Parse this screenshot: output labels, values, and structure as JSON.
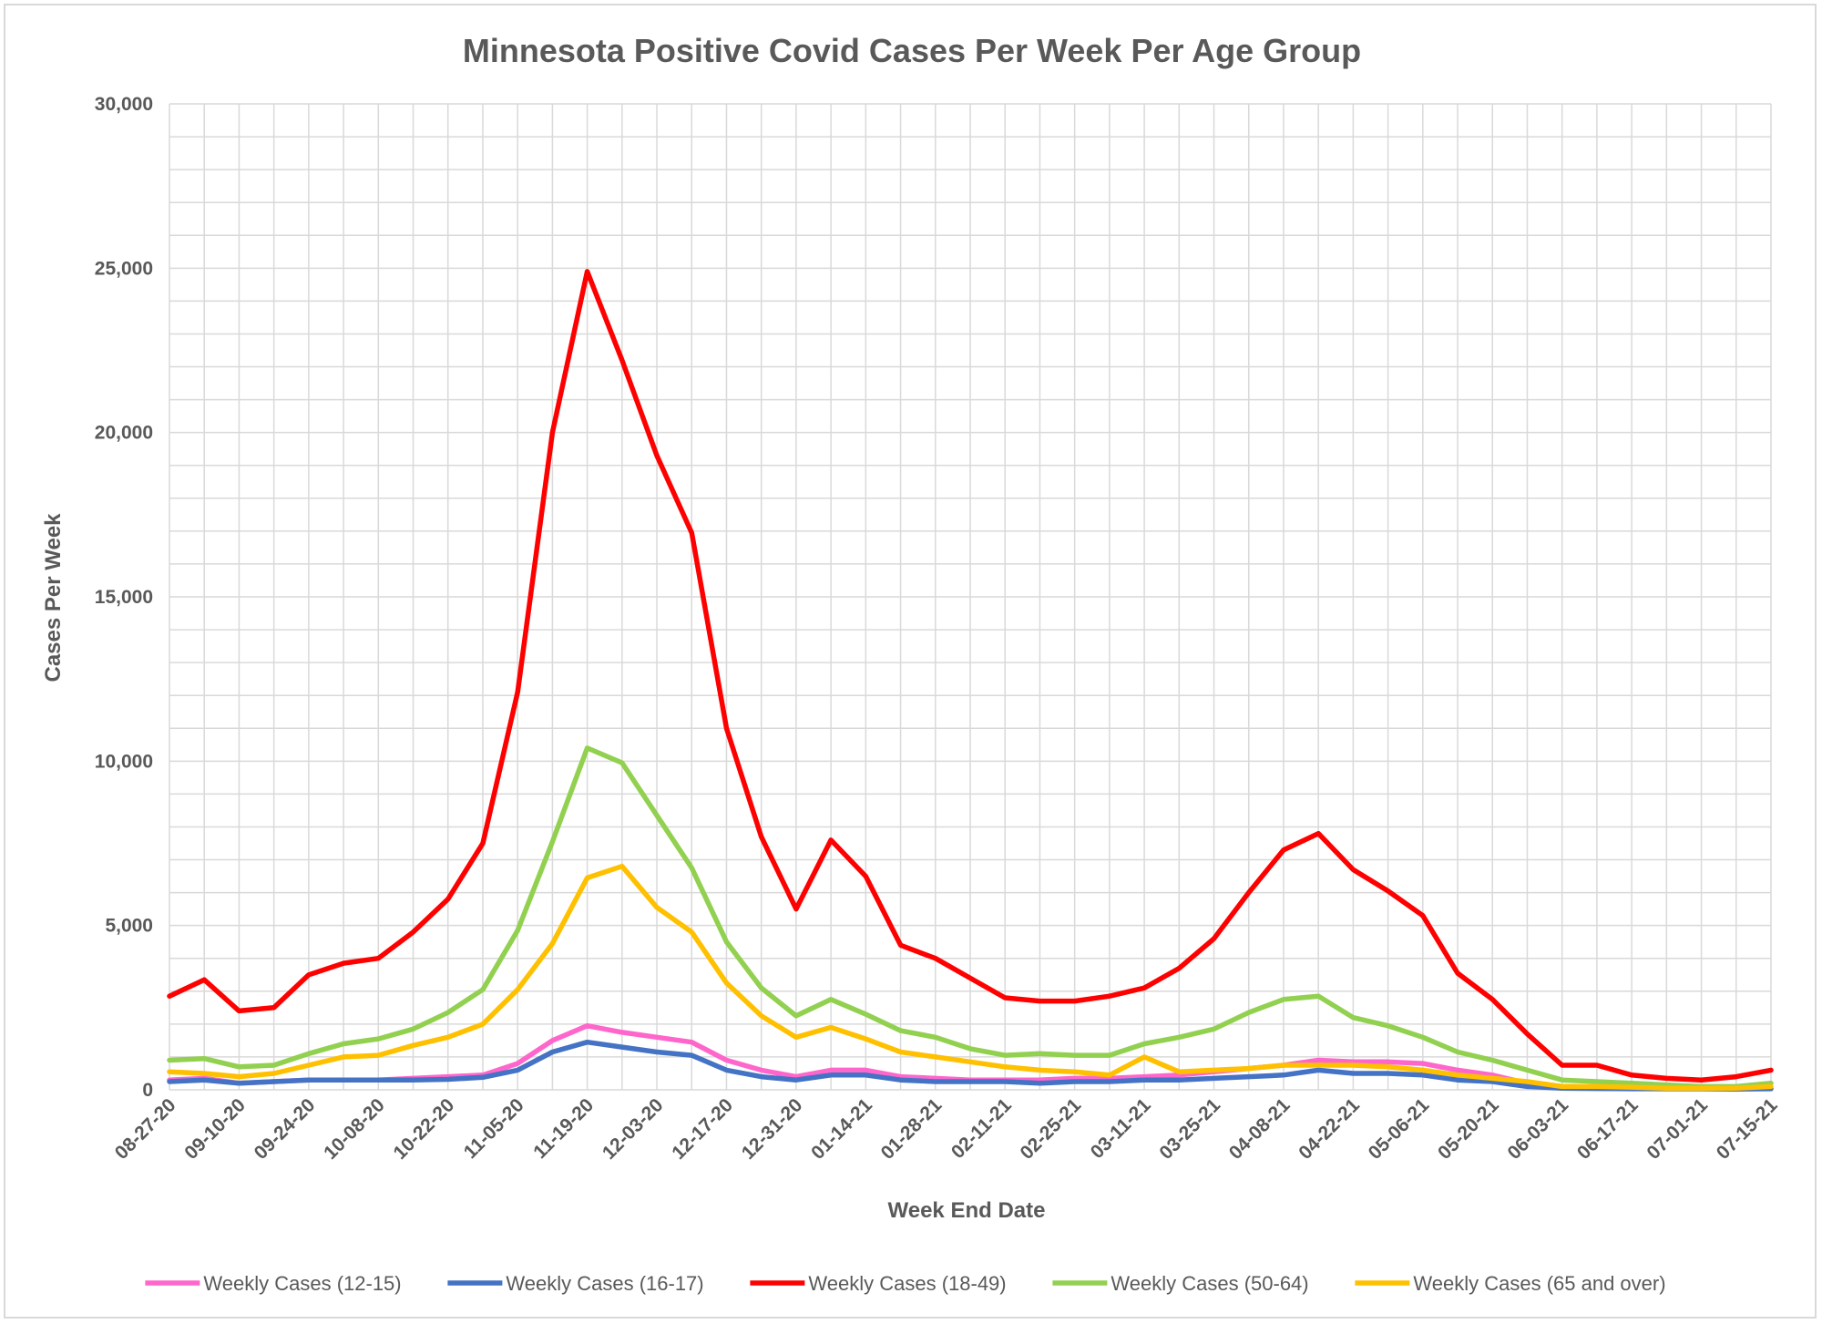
{
  "chart_data": {
    "type": "line",
    "title": "Minnesota Positive Covid Cases Per Week Per Age Group",
    "xlabel": "Week End Date",
    "ylabel": "Cases Per Week",
    "ylim": [
      0,
      30000
    ],
    "yticks": [
      0,
      5000,
      10000,
      15000,
      20000,
      25000,
      30000
    ],
    "ytick_labels": [
      "0",
      "5,000",
      "10,000",
      "15,000",
      "20,000",
      "25,000",
      "30,000"
    ],
    "grid": true,
    "legend_position": "bottom",
    "categories": [
      "08-27-20",
      "09-03-20",
      "09-10-20",
      "09-17-20",
      "09-24-20",
      "10-01-20",
      "10-08-20",
      "10-15-20",
      "10-22-20",
      "10-29-20",
      "11-05-20",
      "11-12-20",
      "11-19-20",
      "11-26-20",
      "12-03-20",
      "12-10-20",
      "12-17-20",
      "12-24-20",
      "12-31-20",
      "01-07-21",
      "01-14-21",
      "01-21-21",
      "01-28-21",
      "02-04-21",
      "02-11-21",
      "02-18-21",
      "02-25-21",
      "03-04-21",
      "03-11-21",
      "03-18-21",
      "03-25-21",
      "04-01-21",
      "04-08-21",
      "04-15-21",
      "04-22-21",
      "04-29-21",
      "05-06-21",
      "05-13-21",
      "05-20-21",
      "05-27-21",
      "06-03-21",
      "06-10-21",
      "06-17-21",
      "06-24-21",
      "07-01-21",
      "07-08-21",
      "07-15-21"
    ],
    "x_tick_labels": [
      "08-27-20",
      "09-10-20",
      "09-24-20",
      "10-08-20",
      "10-22-20",
      "11-05-20",
      "11-19-20",
      "12-03-20",
      "12-17-20",
      "12-31-20",
      "01-14-21",
      "01-28-21",
      "02-11-21",
      "02-25-21",
      "03-11-21",
      "03-25-21",
      "04-08-21",
      "04-22-21",
      "05-06-21",
      "05-20-21",
      "06-03-21",
      "06-17-21",
      "07-01-21",
      "07-15-21"
    ],
    "series": [
      {
        "name": "Weekly Cases (12-15)",
        "color": "#ff66cc",
        "values": [
          300,
          350,
          200,
          250,
          300,
          300,
          300,
          350,
          400,
          450,
          800,
          1500,
          1950,
          1750,
          1600,
          1450,
          900,
          600,
          400,
          600,
          600,
          400,
          350,
          300,
          300,
          300,
          350,
          350,
          400,
          450,
          550,
          650,
          750,
          900,
          850,
          850,
          800,
          600,
          450,
          200,
          100,
          80,
          60,
          50,
          50,
          40,
          50
        ]
      },
      {
        "name": "Weekly Cases (16-17)",
        "color": "#4472c4",
        "values": [
          250,
          300,
          200,
          250,
          300,
          300,
          300,
          300,
          320,
          380,
          600,
          1150,
          1450,
          1300,
          1150,
          1050,
          600,
          400,
          300,
          450,
          450,
          300,
          250,
          250,
          250,
          200,
          250,
          250,
          300,
          300,
          350,
          400,
          450,
          600,
          500,
          500,
          450,
          300,
          250,
          100,
          50,
          40,
          30,
          30,
          30,
          20,
          30
        ]
      },
      {
        "name": "Weekly Cases (18-49)",
        "color": "#ff0000",
        "values": [
          2850,
          3350,
          2400,
          2500,
          3500,
          3850,
          4000,
          4800,
          5800,
          7500,
          12100,
          20000,
          24900,
          22200,
          19300,
          16950,
          11000,
          7700,
          5500,
          7600,
          6500,
          4400,
          4000,
          3400,
          2800,
          2700,
          2700,
          2850,
          3100,
          3700,
          4600,
          6000,
          7300,
          7800,
          6700,
          6050,
          5300,
          3550,
          2750,
          1700,
          750,
          750,
          450,
          350,
          300,
          400,
          600
        ]
      },
      {
        "name": "Weekly Cases (50-64)",
        "color": "#92d050",
        "values": [
          900,
          950,
          700,
          750,
          1100,
          1400,
          1550,
          1850,
          2350,
          3050,
          4850,
          7550,
          10400,
          9950,
          8350,
          6750,
          4500,
          3100,
          2250,
          2750,
          2300,
          1800,
          1600,
          1250,
          1050,
          1100,
          1050,
          1050,
          1400,
          1600,
          1850,
          2350,
          2750,
          2850,
          2200,
          1950,
          1600,
          1150,
          900,
          600,
          300,
          250,
          200,
          150,
          100,
          100,
          200
        ]
      },
      {
        "name": "Weekly Cases (65 and over)",
        "color": "#ffc000",
        "values": [
          550,
          500,
          400,
          500,
          750,
          1000,
          1050,
          1350,
          1600,
          2000,
          3050,
          4450,
          6450,
          6800,
          5550,
          4800,
          3250,
          2250,
          1600,
          1900,
          1550,
          1150,
          1000,
          850,
          700,
          600,
          550,
          450,
          1000,
          550,
          600,
          650,
          750,
          750,
          750,
          700,
          600,
          450,
          350,
          250,
          100,
          100,
          80,
          50,
          50,
          50,
          100
        ]
      }
    ]
  }
}
